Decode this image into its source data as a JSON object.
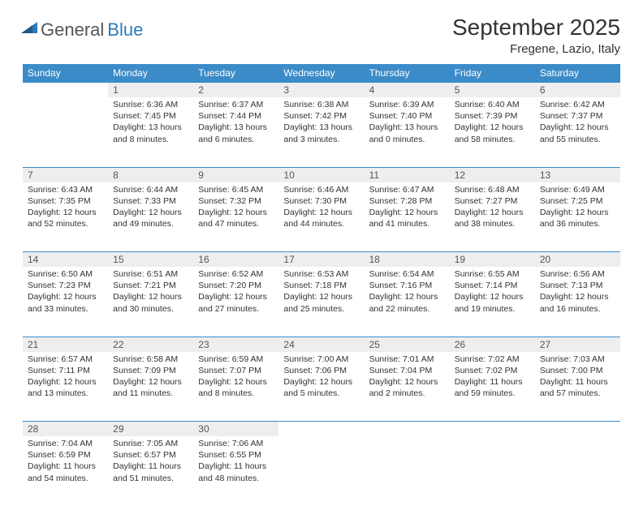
{
  "logo": {
    "text1": "General",
    "text2": "Blue"
  },
  "title": "September 2025",
  "location": "Fregene, Lazio, Italy",
  "weekdays": [
    "Sunday",
    "Monday",
    "Tuesday",
    "Wednesday",
    "Thursday",
    "Friday",
    "Saturday"
  ],
  "colors": {
    "header_bg": "#3b8bc8",
    "header_text": "#ffffff",
    "daynum_bg": "#eeeeee",
    "border": "#3b8bc8",
    "text": "#333333"
  },
  "weeks": [
    [
      null,
      {
        "n": "1",
        "sr": "Sunrise: 6:36 AM",
        "ss": "Sunset: 7:45 PM",
        "dl": "Daylight: 13 hours and 8 minutes."
      },
      {
        "n": "2",
        "sr": "Sunrise: 6:37 AM",
        "ss": "Sunset: 7:44 PM",
        "dl": "Daylight: 13 hours and 6 minutes."
      },
      {
        "n": "3",
        "sr": "Sunrise: 6:38 AM",
        "ss": "Sunset: 7:42 PM",
        "dl": "Daylight: 13 hours and 3 minutes."
      },
      {
        "n": "4",
        "sr": "Sunrise: 6:39 AM",
        "ss": "Sunset: 7:40 PM",
        "dl": "Daylight: 13 hours and 0 minutes."
      },
      {
        "n": "5",
        "sr": "Sunrise: 6:40 AM",
        "ss": "Sunset: 7:39 PM",
        "dl": "Daylight: 12 hours and 58 minutes."
      },
      {
        "n": "6",
        "sr": "Sunrise: 6:42 AM",
        "ss": "Sunset: 7:37 PM",
        "dl": "Daylight: 12 hours and 55 minutes."
      }
    ],
    [
      {
        "n": "7",
        "sr": "Sunrise: 6:43 AM",
        "ss": "Sunset: 7:35 PM",
        "dl": "Daylight: 12 hours and 52 minutes."
      },
      {
        "n": "8",
        "sr": "Sunrise: 6:44 AM",
        "ss": "Sunset: 7:33 PM",
        "dl": "Daylight: 12 hours and 49 minutes."
      },
      {
        "n": "9",
        "sr": "Sunrise: 6:45 AM",
        "ss": "Sunset: 7:32 PM",
        "dl": "Daylight: 12 hours and 47 minutes."
      },
      {
        "n": "10",
        "sr": "Sunrise: 6:46 AM",
        "ss": "Sunset: 7:30 PM",
        "dl": "Daylight: 12 hours and 44 minutes."
      },
      {
        "n": "11",
        "sr": "Sunrise: 6:47 AM",
        "ss": "Sunset: 7:28 PM",
        "dl": "Daylight: 12 hours and 41 minutes."
      },
      {
        "n": "12",
        "sr": "Sunrise: 6:48 AM",
        "ss": "Sunset: 7:27 PM",
        "dl": "Daylight: 12 hours and 38 minutes."
      },
      {
        "n": "13",
        "sr": "Sunrise: 6:49 AM",
        "ss": "Sunset: 7:25 PM",
        "dl": "Daylight: 12 hours and 36 minutes."
      }
    ],
    [
      {
        "n": "14",
        "sr": "Sunrise: 6:50 AM",
        "ss": "Sunset: 7:23 PM",
        "dl": "Daylight: 12 hours and 33 minutes."
      },
      {
        "n": "15",
        "sr": "Sunrise: 6:51 AM",
        "ss": "Sunset: 7:21 PM",
        "dl": "Daylight: 12 hours and 30 minutes."
      },
      {
        "n": "16",
        "sr": "Sunrise: 6:52 AM",
        "ss": "Sunset: 7:20 PM",
        "dl": "Daylight: 12 hours and 27 minutes."
      },
      {
        "n": "17",
        "sr": "Sunrise: 6:53 AM",
        "ss": "Sunset: 7:18 PM",
        "dl": "Daylight: 12 hours and 25 minutes."
      },
      {
        "n": "18",
        "sr": "Sunrise: 6:54 AM",
        "ss": "Sunset: 7:16 PM",
        "dl": "Daylight: 12 hours and 22 minutes."
      },
      {
        "n": "19",
        "sr": "Sunrise: 6:55 AM",
        "ss": "Sunset: 7:14 PM",
        "dl": "Daylight: 12 hours and 19 minutes."
      },
      {
        "n": "20",
        "sr": "Sunrise: 6:56 AM",
        "ss": "Sunset: 7:13 PM",
        "dl": "Daylight: 12 hours and 16 minutes."
      }
    ],
    [
      {
        "n": "21",
        "sr": "Sunrise: 6:57 AM",
        "ss": "Sunset: 7:11 PM",
        "dl": "Daylight: 12 hours and 13 minutes."
      },
      {
        "n": "22",
        "sr": "Sunrise: 6:58 AM",
        "ss": "Sunset: 7:09 PM",
        "dl": "Daylight: 12 hours and 11 minutes."
      },
      {
        "n": "23",
        "sr": "Sunrise: 6:59 AM",
        "ss": "Sunset: 7:07 PM",
        "dl": "Daylight: 12 hours and 8 minutes."
      },
      {
        "n": "24",
        "sr": "Sunrise: 7:00 AM",
        "ss": "Sunset: 7:06 PM",
        "dl": "Daylight: 12 hours and 5 minutes."
      },
      {
        "n": "25",
        "sr": "Sunrise: 7:01 AM",
        "ss": "Sunset: 7:04 PM",
        "dl": "Daylight: 12 hours and 2 minutes."
      },
      {
        "n": "26",
        "sr": "Sunrise: 7:02 AM",
        "ss": "Sunset: 7:02 PM",
        "dl": "Daylight: 11 hours and 59 minutes."
      },
      {
        "n": "27",
        "sr": "Sunrise: 7:03 AM",
        "ss": "Sunset: 7:00 PM",
        "dl": "Daylight: 11 hours and 57 minutes."
      }
    ],
    [
      {
        "n": "28",
        "sr": "Sunrise: 7:04 AM",
        "ss": "Sunset: 6:59 PM",
        "dl": "Daylight: 11 hours and 54 minutes."
      },
      {
        "n": "29",
        "sr": "Sunrise: 7:05 AM",
        "ss": "Sunset: 6:57 PM",
        "dl": "Daylight: 11 hours and 51 minutes."
      },
      {
        "n": "30",
        "sr": "Sunrise: 7:06 AM",
        "ss": "Sunset: 6:55 PM",
        "dl": "Daylight: 11 hours and 48 minutes."
      },
      null,
      null,
      null,
      null
    ]
  ]
}
